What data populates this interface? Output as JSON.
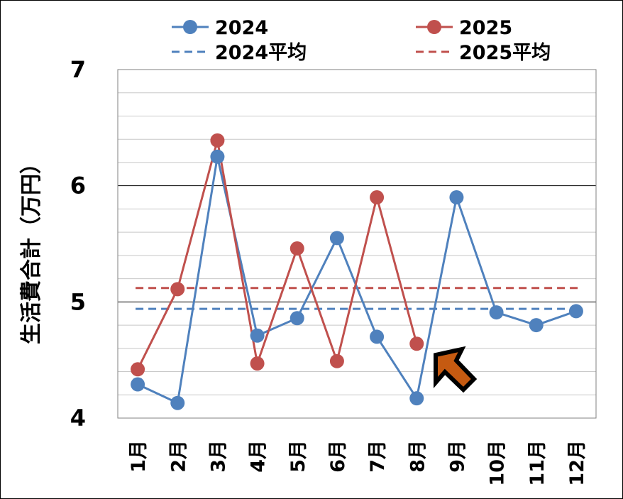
{
  "chart_data": {
    "type": "line",
    "categories": [
      "1月",
      "2月",
      "3月",
      "4月",
      "5月",
      "6月",
      "7月",
      "8月",
      "9月",
      "10月",
      "11月",
      "12月"
    ],
    "ylabel": "生活費合計（万円）",
    "ylim": [
      4,
      7
    ],
    "yticks": [
      "4",
      "5",
      "6",
      "7"
    ],
    "series": [
      {
        "name": "2024",
        "color": "#4f81bd",
        "values": [
          4.29,
          4.13,
          6.25,
          4.71,
          4.86,
          5.55,
          4.7,
          4.17,
          5.9,
          4.91,
          4.8,
          4.92
        ]
      },
      {
        "name": "2025",
        "color": "#c0504d",
        "values": [
          4.42,
          5.11,
          6.39,
          4.47,
          5.46,
          4.49,
          5.9,
          4.64,
          null,
          null,
          null,
          null
        ]
      }
    ],
    "averages": [
      {
        "name": "2024平均",
        "color": "#4f81bd",
        "value": 4.94
      },
      {
        "name": "2025平均",
        "color": "#c0504d",
        "value": 5.12
      }
    ],
    "annotation": {
      "type": "arrow",
      "color": "#c55a11",
      "points_to": "8月"
    }
  }
}
